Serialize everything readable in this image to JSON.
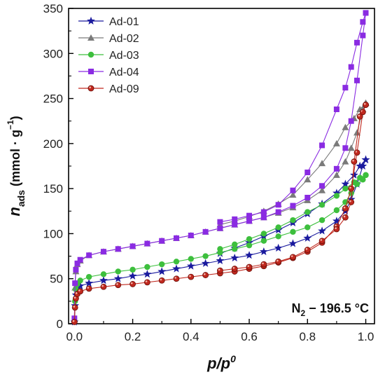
{
  "chart_data": {
    "type": "line",
    "xlabel_main": "p/p",
    "xlabel_sup": "0",
    "ylabel_symbol": "n",
    "ylabel_sub": "ads",
    "ylabel_unit_open": " (mmol · g",
    "ylabel_unit_sup": "−1",
    "ylabel_unit_close": ")",
    "annotation_main": "N",
    "annotation_sub": "2",
    "annotation_rest": " − 196.5 °C",
    "xlim": [
      -0.02,
      1.03
    ],
    "ylim": [
      0,
      350
    ],
    "xticks": [
      0.0,
      0.2,
      0.4,
      0.6,
      0.8,
      1.0
    ],
    "xtick_labels": [
      "0.0",
      "0.2",
      "0.4",
      "0.6",
      "0.8",
      "1.0"
    ],
    "yticks": [
      0,
      50,
      100,
      150,
      200,
      250,
      300,
      350
    ],
    "ytick_labels": [
      "0",
      "50",
      "100",
      "150",
      "200",
      "250",
      "300",
      "350"
    ],
    "legend_position": "top-left",
    "series": [
      {
        "name": "Ad-01",
        "color": "#1a1a9e",
        "marker": "star",
        "adsorption": [
          [
            0.0,
            2
          ],
          [
            0.002,
            20
          ],
          [
            0.005,
            32
          ],
          [
            0.01,
            38
          ],
          [
            0.02,
            42
          ],
          [
            0.05,
            45
          ],
          [
            0.1,
            48
          ],
          [
            0.15,
            50
          ],
          [
            0.2,
            53
          ],
          [
            0.25,
            55
          ],
          [
            0.3,
            58
          ],
          [
            0.35,
            61
          ],
          [
            0.4,
            64
          ],
          [
            0.45,
            67
          ],
          [
            0.5,
            70
          ],
          [
            0.55,
            73
          ],
          [
            0.6,
            76
          ],
          [
            0.65,
            80
          ],
          [
            0.7,
            84
          ],
          [
            0.75,
            89
          ],
          [
            0.8,
            95
          ],
          [
            0.85,
            103
          ],
          [
            0.9,
            114
          ],
          [
            0.93,
            125
          ],
          [
            0.95,
            138
          ],
          [
            0.97,
            155
          ],
          [
            0.99,
            175
          ],
          [
            1.0,
            182
          ]
        ],
        "desorption": [
          [
            1.0,
            182
          ],
          [
            0.98,
            175
          ],
          [
            0.96,
            165
          ],
          [
            0.93,
            155
          ],
          [
            0.9,
            145
          ],
          [
            0.85,
            133
          ],
          [
            0.8,
            122
          ],
          [
            0.75,
            112
          ],
          [
            0.7,
            104
          ],
          [
            0.65,
            97
          ],
          [
            0.6,
            90
          ],
          [
            0.55,
            84
          ],
          [
            0.5,
            78
          ]
        ]
      },
      {
        "name": "Ad-02",
        "color": "#7a7a7a",
        "marker": "triangle",
        "adsorption": [
          [
            0.0,
            5
          ],
          [
            0.002,
            40
          ],
          [
            0.005,
            58
          ],
          [
            0.01,
            66
          ],
          [
            0.02,
            70
          ],
          [
            0.05,
            76
          ],
          [
            0.1,
            80
          ],
          [
            0.15,
            83
          ],
          [
            0.2,
            86
          ],
          [
            0.25,
            89
          ],
          [
            0.3,
            92
          ],
          [
            0.35,
            95
          ],
          [
            0.4,
            98
          ],
          [
            0.45,
            102
          ],
          [
            0.5,
            106
          ],
          [
            0.55,
            110
          ],
          [
            0.6,
            114
          ],
          [
            0.65,
            118
          ],
          [
            0.7,
            123
          ],
          [
            0.75,
            129
          ],
          [
            0.8,
            137
          ],
          [
            0.85,
            148
          ],
          [
            0.9,
            165
          ],
          [
            0.93,
            180
          ],
          [
            0.95,
            195
          ],
          [
            0.97,
            212
          ],
          [
            0.99,
            238
          ],
          [
            1.0,
            245
          ]
        ],
        "desorption": [
          [
            1.0,
            245
          ],
          [
            0.98,
            238
          ],
          [
            0.96,
            228
          ],
          [
            0.93,
            218
          ],
          [
            0.9,
            200
          ],
          [
            0.85,
            178
          ],
          [
            0.8,
            160
          ],
          [
            0.75,
            143
          ],
          [
            0.7,
            133
          ],
          [
            0.65,
            125
          ],
          [
            0.6,
            119
          ],
          [
            0.55,
            114
          ],
          [
            0.5,
            110
          ]
        ]
      },
      {
        "name": "Ad-03",
        "color": "#3dbf3d",
        "marker": "circle",
        "adsorption": [
          [
            0.0,
            3
          ],
          [
            0.002,
            25
          ],
          [
            0.005,
            38
          ],
          [
            0.01,
            44
          ],
          [
            0.02,
            48
          ],
          [
            0.05,
            52
          ],
          [
            0.1,
            55
          ],
          [
            0.15,
            58
          ],
          [
            0.2,
            60
          ],
          [
            0.25,
            63
          ],
          [
            0.3,
            66
          ],
          [
            0.35,
            69
          ],
          [
            0.4,
            72
          ],
          [
            0.45,
            75
          ],
          [
            0.5,
            79
          ],
          [
            0.55,
            83
          ],
          [
            0.6,
            87
          ],
          [
            0.65,
            92
          ],
          [
            0.7,
            97
          ],
          [
            0.75,
            102
          ],
          [
            0.8,
            107
          ],
          [
            0.85,
            115
          ],
          [
            0.9,
            126
          ],
          [
            0.93,
            135
          ],
          [
            0.95,
            145
          ],
          [
            0.97,
            155
          ],
          [
            0.99,
            160
          ],
          [
            1.0,
            165
          ]
        ],
        "desorption": [
          [
            1.0,
            165
          ],
          [
            0.98,
            162
          ],
          [
            0.96,
            157
          ],
          [
            0.93,
            150
          ],
          [
            0.9,
            142
          ],
          [
            0.85,
            132
          ],
          [
            0.8,
            124
          ],
          [
            0.75,
            115
          ],
          [
            0.7,
            107
          ],
          [
            0.65,
            100
          ],
          [
            0.6,
            94
          ],
          [
            0.55,
            88
          ],
          [
            0.5,
            83
          ]
        ]
      },
      {
        "name": "Ad-04",
        "color": "#8a2be2",
        "marker": "square",
        "adsorption": [
          [
            0.0,
            6
          ],
          [
            0.002,
            45
          ],
          [
            0.005,
            60
          ],
          [
            0.01,
            67
          ],
          [
            0.02,
            71
          ],
          [
            0.05,
            76
          ],
          [
            0.1,
            80
          ],
          [
            0.15,
            83
          ],
          [
            0.2,
            86
          ],
          [
            0.25,
            89
          ],
          [
            0.3,
            92
          ],
          [
            0.35,
            95
          ],
          [
            0.4,
            98
          ],
          [
            0.45,
            102
          ],
          [
            0.5,
            106
          ],
          [
            0.55,
            110
          ],
          [
            0.6,
            114
          ],
          [
            0.65,
            118
          ],
          [
            0.7,
            124
          ],
          [
            0.75,
            131
          ],
          [
            0.8,
            140
          ],
          [
            0.85,
            153
          ],
          [
            0.9,
            172
          ],
          [
            0.93,
            195
          ],
          [
            0.95,
            225
          ],
          [
            0.97,
            270
          ],
          [
            0.99,
            320
          ],
          [
            1.0,
            345
          ]
        ],
        "desorption": [
          [
            1.0,
            345
          ],
          [
            0.99,
            335
          ],
          [
            0.97,
            312
          ],
          [
            0.95,
            285
          ],
          [
            0.93,
            262
          ],
          [
            0.9,
            238
          ],
          [
            0.85,
            198
          ],
          [
            0.8,
            168
          ],
          [
            0.75,
            148
          ],
          [
            0.7,
            132
          ],
          [
            0.65,
            124
          ],
          [
            0.6,
            120
          ],
          [
            0.55,
            116
          ],
          [
            0.5,
            113
          ]
        ]
      },
      {
        "name": "Ad-09",
        "color": "#c0281e",
        "marker": "sphere",
        "adsorption": [
          [
            0.0,
            2
          ],
          [
            0.002,
            18
          ],
          [
            0.005,
            28
          ],
          [
            0.01,
            33
          ],
          [
            0.02,
            36
          ],
          [
            0.05,
            39
          ],
          [
            0.1,
            41
          ],
          [
            0.15,
            43
          ],
          [
            0.2,
            44
          ],
          [
            0.25,
            46
          ],
          [
            0.3,
            48
          ],
          [
            0.35,
            50
          ],
          [
            0.4,
            52
          ],
          [
            0.45,
            54
          ],
          [
            0.5,
            56
          ],
          [
            0.55,
            58
          ],
          [
            0.6,
            61
          ],
          [
            0.65,
            64
          ],
          [
            0.7,
            68
          ],
          [
            0.75,
            73
          ],
          [
            0.8,
            80
          ],
          [
            0.85,
            90
          ],
          [
            0.9,
            108
          ],
          [
            0.93,
            128
          ],
          [
            0.95,
            150
          ],
          [
            0.97,
            190
          ],
          [
            0.99,
            235
          ],
          [
            1.0,
            243
          ]
        ],
        "desorption": [
          [
            1.0,
            243
          ],
          [
            0.98,
            230
          ],
          [
            0.96,
            180
          ],
          [
            0.95,
            135
          ],
          [
            0.93,
            118
          ],
          [
            0.9,
            105
          ],
          [
            0.85,
            92
          ],
          [
            0.8,
            82
          ],
          [
            0.75,
            74
          ],
          [
            0.7,
            69
          ],
          [
            0.65,
            66
          ],
          [
            0.6,
            63
          ],
          [
            0.55,
            61
          ],
          [
            0.5,
            59
          ]
        ]
      }
    ]
  }
}
